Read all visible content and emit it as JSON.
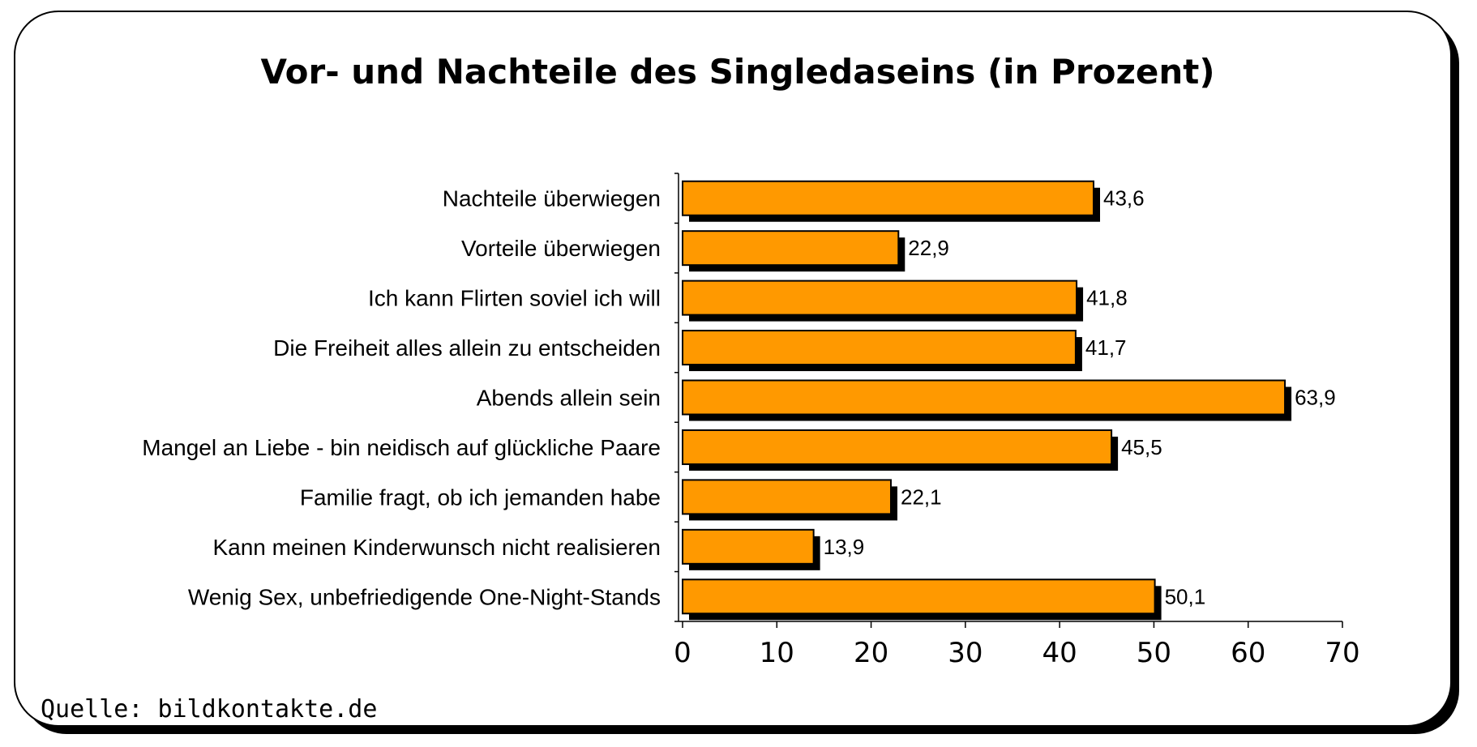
{
  "chart_data": {
    "type": "bar",
    "orientation": "horizontal",
    "title": "Vor- und Nachteile des Singledaseins (in Prozent)",
    "categories": [
      "Nachteile überwiegen",
      "Vorteile überwiegen",
      "Ich kann Flirten soviel ich will",
      "Die Freiheit alles allein zu entscheiden",
      "Abends allein sein",
      "Mangel an Liebe - bin neidisch auf glückliche Paare",
      "Familie fragt, ob ich jemanden habe",
      "Kann meinen Kinderwunsch nicht realisieren",
      "Wenig Sex, unbefriedigende One-Night-Stands"
    ],
    "values": [
      43.6,
      22.9,
      41.8,
      41.7,
      63.9,
      45.5,
      22.1,
      13.9,
      50.1
    ],
    "value_labels": [
      "43,6",
      "22,9",
      "41,8",
      "41,7",
      "63,9",
      "45,5",
      "22,1",
      "13,9",
      "50,1"
    ],
    "xlim": [
      0,
      70
    ],
    "x_ticks": [
      0,
      10,
      20,
      30,
      40,
      50,
      60,
      70
    ],
    "grid": false,
    "legend": "none",
    "bar_color": "#FF9900",
    "shadow_color": "#000000",
    "source": "Quelle: bildkontakte.de"
  }
}
